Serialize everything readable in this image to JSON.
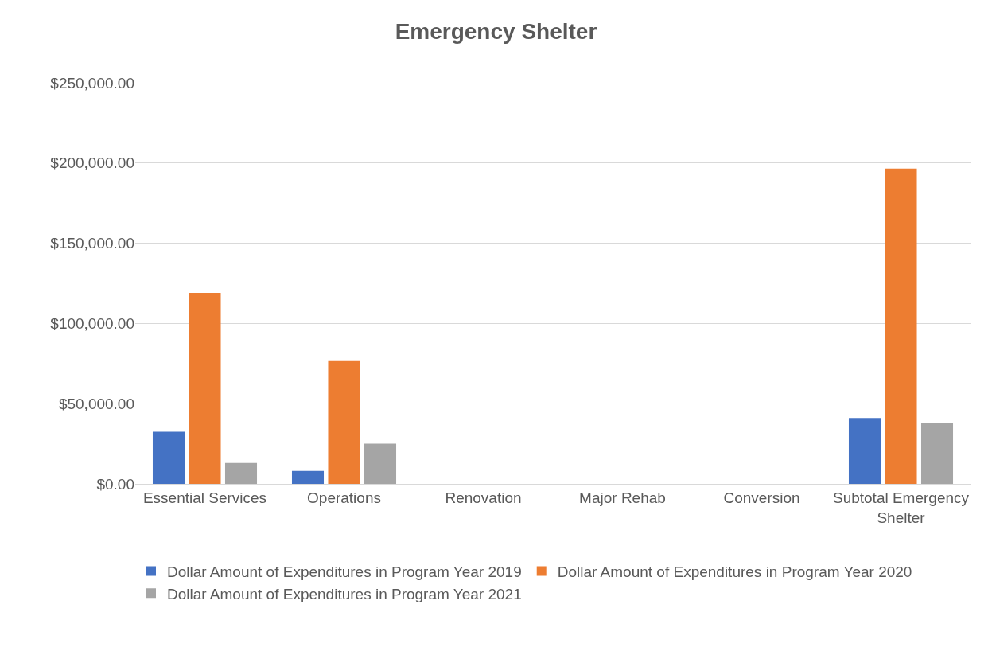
{
  "chart_data": {
    "type": "bar",
    "title": "Emergency Shelter",
    "categories": [
      "Essential Services",
      "Operations",
      "Renovation",
      "Major Rehab",
      "Conversion",
      "Subtotal Emergency Shelter"
    ],
    "series": [
      {
        "name": "Dollar Amount of Expenditures in Program Year 2019",
        "color": "#4472c4",
        "values": [
          32500,
          8000,
          0,
          0,
          0,
          41000
        ]
      },
      {
        "name": "Dollar Amount of Expenditures in Program Year 2020",
        "color": "#ed7d31",
        "values": [
          119000,
          77000,
          0,
          0,
          0,
          196500
        ]
      },
      {
        "name": "Dollar Amount of Expenditures in Program Year 2021",
        "color": "#a5a5a5",
        "values": [
          13000,
          25000,
          0,
          0,
          0,
          38000
        ]
      }
    ],
    "ylim": [
      0,
      250000
    ],
    "yticks": [
      {
        "value": 0,
        "label": "$0.00"
      },
      {
        "value": 50000,
        "label": "$50,000.00"
      },
      {
        "value": 100000,
        "label": "$100,000.00"
      },
      {
        "value": 150000,
        "label": "$150,000.00"
      },
      {
        "value": 200000,
        "label": "$200,000.00"
      },
      {
        "value": 250000,
        "label": "$250,000.00"
      }
    ],
    "grid": "y",
    "legend": "bottom"
  }
}
